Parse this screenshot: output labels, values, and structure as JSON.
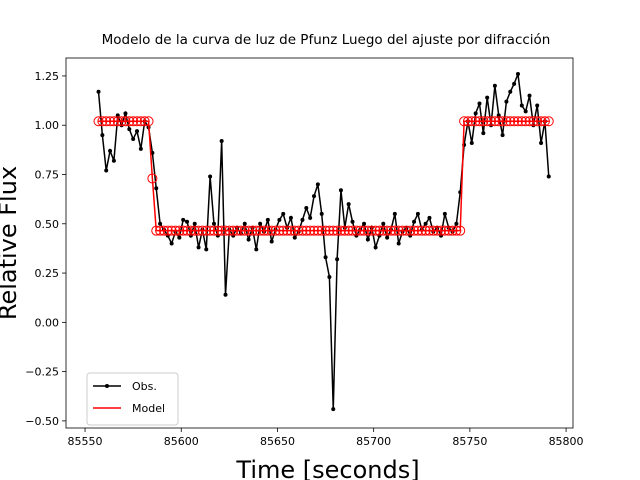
{
  "chart_data": {
    "type": "line",
    "title": "Modelo de la curva de luz de Pfunz Luego del ajuste por difracción",
    "xlabel": "Time [seconds]",
    "ylabel": "Relative Flux",
    "x": [
      85557,
      85559,
      85561,
      85563,
      85565,
      85567,
      85569,
      85571,
      85573,
      85575,
      85577,
      85579,
      85581,
      85583,
      85585,
      85587,
      85589,
      85591,
      85593,
      85595,
      85597,
      85599,
      85601,
      85603,
      85605,
      85607,
      85609,
      85611,
      85613,
      85615,
      85617,
      85619,
      85621,
      85623,
      85625,
      85627,
      85629,
      85631,
      85633,
      85635,
      85637,
      85639,
      85641,
      85643,
      85645,
      85647,
      85649,
      85651,
      85653,
      85655,
      85657,
      85659,
      85661,
      85663,
      85665,
      85667,
      85669,
      85671,
      85673,
      85675,
      85677,
      85679,
      85681,
      85683,
      85685,
      85687,
      85689,
      85691,
      85693,
      85695,
      85697,
      85699,
      85701,
      85703,
      85705,
      85707,
      85709,
      85711,
      85713,
      85715,
      85717,
      85719,
      85721,
      85723,
      85725,
      85727,
      85729,
      85731,
      85733,
      85735,
      85737,
      85739,
      85741,
      85743,
      85745,
      85747,
      85749,
      85751,
      85753,
      85755,
      85757,
      85759,
      85761,
      85763,
      85765,
      85767,
      85769,
      85771,
      85773,
      85775,
      85777,
      85779,
      85781,
      85783,
      85785,
      85787,
      85789,
      85791
    ],
    "series": [
      {
        "name": "Obs.",
        "color": "#000000",
        "marker": "dot",
        "values": [
          1.17,
          0.95,
          0.77,
          0.87,
          0.82,
          1.05,
          1.0,
          1.06,
          0.98,
          0.93,
          0.97,
          0.88,
          1.02,
          0.99,
          0.86,
          0.68,
          0.5,
          0.47,
          0.44,
          0.4,
          0.46,
          0.43,
          0.52,
          0.51,
          0.44,
          0.5,
          0.38,
          0.47,
          0.37,
          0.74,
          0.5,
          0.44,
          0.92,
          0.14,
          0.47,
          0.44,
          0.48,
          0.45,
          0.5,
          0.42,
          0.48,
          0.37,
          0.5,
          0.46,
          0.52,
          0.41,
          0.47,
          0.52,
          0.55,
          0.48,
          0.53,
          0.43,
          0.46,
          0.52,
          0.58,
          0.53,
          0.64,
          0.7,
          0.55,
          0.33,
          0.23,
          -0.44,
          0.32,
          0.67,
          0.48,
          0.6,
          0.51,
          0.44,
          0.47,
          0.5,
          0.42,
          0.48,
          0.38,
          0.44,
          0.5,
          0.43,
          0.47,
          0.55,
          0.4,
          0.46,
          0.48,
          0.44,
          0.51,
          0.55,
          0.47,
          0.5,
          0.53,
          0.46,
          0.48,
          0.44,
          0.55,
          0.48,
          0.46,
          0.5,
          0.66,
          0.9,
          1.02,
          0.91,
          1.06,
          1.11,
          0.96,
          1.14,
          1.0,
          1.2,
          1.05,
          0.95,
          1.12,
          1.17,
          1.21,
          1.26,
          1.1,
          1.07,
          1.15,
          1.0,
          1.1,
          0.91,
          1.02,
          0.74
        ]
      },
      {
        "name": "Model",
        "color": "#ff0000",
        "marker": "open-circle",
        "values": [
          1.02,
          1.02,
          1.02,
          1.02,
          1.02,
          1.02,
          1.02,
          1.02,
          1.02,
          1.02,
          1.02,
          1.02,
          1.02,
          1.02,
          0.73,
          0.465,
          0.465,
          0.465,
          0.465,
          0.465,
          0.465,
          0.465,
          0.465,
          0.465,
          0.465,
          0.465,
          0.465,
          0.465,
          0.465,
          0.465,
          0.465,
          0.465,
          0.465,
          0.465,
          0.465,
          0.465,
          0.465,
          0.465,
          0.465,
          0.465,
          0.465,
          0.465,
          0.465,
          0.465,
          0.465,
          0.465,
          0.465,
          0.465,
          0.465,
          0.465,
          0.465,
          0.465,
          0.465,
          0.465,
          0.465,
          0.465,
          0.465,
          0.465,
          0.465,
          0.465,
          0.465,
          0.465,
          0.465,
          0.465,
          0.465,
          0.465,
          0.465,
          0.465,
          0.465,
          0.465,
          0.465,
          0.465,
          0.465,
          0.465,
          0.465,
          0.465,
          0.465,
          0.465,
          0.465,
          0.465,
          0.465,
          0.465,
          0.465,
          0.465,
          0.465,
          0.465,
          0.465,
          0.465,
          0.465,
          0.465,
          0.465,
          0.465,
          0.465,
          0.465,
          0.465,
          1.02,
          1.02,
          1.02,
          1.02,
          1.02,
          1.02,
          1.02,
          1.02,
          1.02,
          1.02,
          1.02,
          1.02,
          1.02,
          1.02,
          1.02,
          1.02,
          1.02,
          1.02,
          1.02,
          1.02,
          1.02,
          1.02,
          1.02
        ]
      }
    ],
    "xlim": [
      85540.1,
      85803.6
    ],
    "xticks": [
      85550,
      85600,
      85650,
      85700,
      85750,
      85800
    ],
    "ylim": [
      -0.536,
      1.341
    ],
    "yticks": [
      {
        "value": -0.5,
        "label": "−0.50"
      },
      {
        "value": -0.25,
        "label": "−0.25"
      },
      {
        "value": 0,
        "label": "0.00"
      },
      0.25,
      {
        "value": 0.5,
        "label": "0.50"
      },
      0.75,
      {
        "value": 1,
        "label": "1.00"
      },
      1.25
    ],
    "legend": "lower left",
    "grid": false
  }
}
